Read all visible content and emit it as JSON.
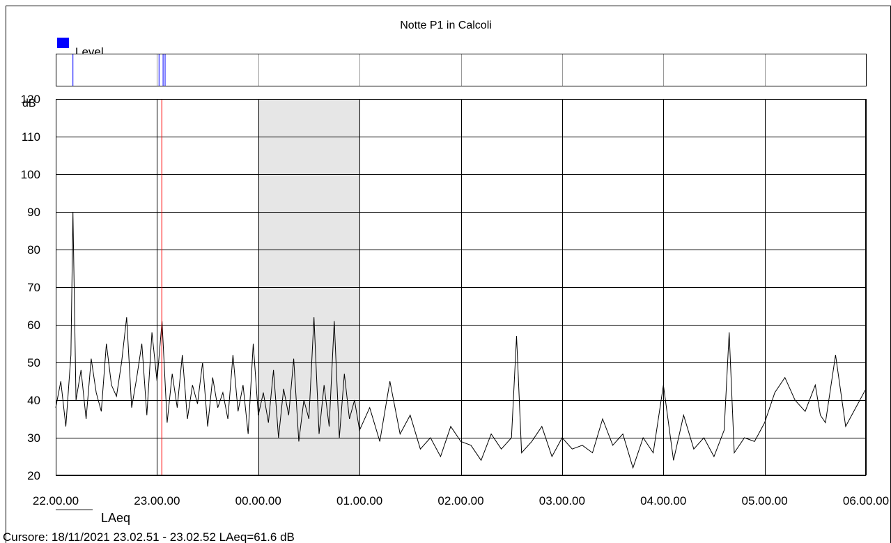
{
  "chart_data": {
    "type": "line",
    "title": "Notte P1 in Calcoli",
    "ylabel": "dB",
    "ylim": [
      20,
      120
    ],
    "y_ticks": [
      120,
      110,
      100,
      90,
      80,
      70,
      60,
      50,
      40,
      30,
      20
    ],
    "xlim_hours": [
      22,
      30
    ],
    "x_tick_labels": [
      "22.00.00",
      "23.00.00",
      "00.00.00",
      "01.00.00",
      "02.00.00",
      "03.00.00",
      "04.00.00",
      "05.00.00",
      "06.00.00"
    ],
    "grid": true,
    "shaded_band_hours": [
      24,
      25
    ],
    "cursor_hour": 23.0475,
    "series": [
      {
        "name": "LAeq",
        "x_hours": [
          22.0,
          22.05,
          22.1,
          22.15,
          22.17,
          22.2,
          22.25,
          22.3,
          22.35,
          22.4,
          22.45,
          22.5,
          22.55,
          22.6,
          22.65,
          22.7,
          22.75,
          22.8,
          22.85,
          22.9,
          22.95,
          23.0,
          23.05,
          23.1,
          23.15,
          23.2,
          23.25,
          23.3,
          23.35,
          23.4,
          23.45,
          23.5,
          23.55,
          23.6,
          23.65,
          23.7,
          23.75,
          23.8,
          23.85,
          23.9,
          23.95,
          24.0,
          24.05,
          24.1,
          24.15,
          24.2,
          24.25,
          24.3,
          24.35,
          24.4,
          24.45,
          24.5,
          24.55,
          24.6,
          24.65,
          24.7,
          24.75,
          24.8,
          24.85,
          24.9,
          24.95,
          25.0,
          25.1,
          25.2,
          25.3,
          25.4,
          25.5,
          25.6,
          25.7,
          25.8,
          25.9,
          26.0,
          26.1,
          26.2,
          26.3,
          26.4,
          26.5,
          26.55,
          26.6,
          26.7,
          26.8,
          26.9,
          27.0,
          27.1,
          27.2,
          27.3,
          27.4,
          27.5,
          27.6,
          27.7,
          27.8,
          27.9,
          28.0,
          28.1,
          28.2,
          28.3,
          28.4,
          28.5,
          28.6,
          28.65,
          28.7,
          28.8,
          28.9,
          29.0,
          29.1,
          29.2,
          29.3,
          29.4,
          29.5,
          29.55,
          29.6,
          29.7,
          29.8,
          29.9,
          30.0
        ],
        "values": [
          38,
          45,
          33,
          52,
          90,
          40,
          48,
          35,
          51,
          42,
          37,
          55,
          44,
          41,
          50,
          62,
          38,
          46,
          55,
          36,
          58,
          45,
          61,
          34,
          47,
          38,
          52,
          35,
          44,
          39,
          50,
          33,
          46,
          38,
          42,
          35,
          52,
          37,
          44,
          31,
          55,
          36,
          42,
          34,
          48,
          30,
          43,
          36,
          51,
          29,
          40,
          35,
          62,
          31,
          44,
          33,
          61,
          30,
          47,
          35,
          40,
          32,
          38,
          29,
          45,
          31,
          36,
          27,
          30,
          25,
          33,
          29,
          28,
          24,
          31,
          27,
          30,
          57,
          26,
          29,
          33,
          25,
          30,
          27,
          28,
          26,
          35,
          28,
          31,
          22,
          30,
          26,
          44,
          24,
          36,
          27,
          30,
          25,
          32,
          58,
          26,
          30,
          29,
          34,
          42,
          46,
          40,
          37,
          44,
          36,
          34,
          52,
          33,
          38,
          43
        ]
      }
    ],
    "level_overview": {
      "label": "Level",
      "color": "#0000ff",
      "markers_hours": [
        22.17,
        23.02,
        23.06,
        23.08
      ]
    },
    "legend": [
      {
        "name": "LAeq",
        "style": "line",
        "color": "#000000"
      }
    ],
    "cursor_text": "Cursore: 18/11/2021 23.02.51 - 23.02.52  LAeq=61.6 dB",
    "colors": {
      "series": "#000000",
      "cursor": "#ff0000",
      "shading": "#e6e6e6",
      "level_legend": "#0000ff"
    }
  }
}
